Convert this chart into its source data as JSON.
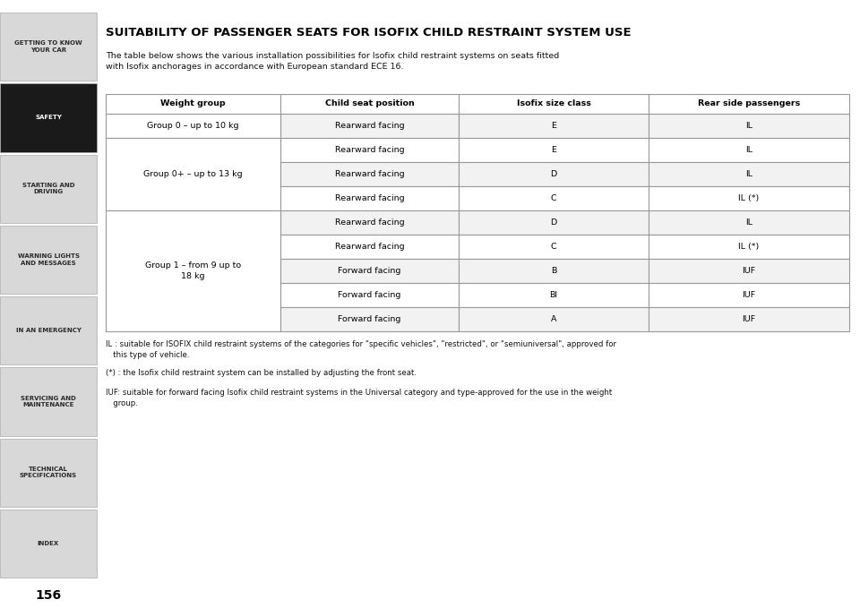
{
  "title": "SUITABILITY OF PASSENGER SEATS FOR ISOFIX CHILD RESTRAINT SYSTEM USE",
  "intro_text": "The table below shows the various installation possibilities for Isofix child restraint systems on seats fitted\nwith Isofix anchorages in accordance with European standard ECE 16.",
  "col_headers": [
    "Weight group",
    "Child seat position",
    "Isofix size class",
    "Rear side passengers"
  ],
  "group_spans": [
    {
      "label": "Group 0 – up to 10 kg",
      "start": 0,
      "end": 0
    },
    {
      "label": "Group 0+ – up to 13 kg",
      "start": 1,
      "end": 3
    },
    {
      "label": "Group 1 – from 9 up to\n18 kg",
      "start": 4,
      "end": 8
    }
  ],
  "rows": [
    [
      "Group 0 – up to 10 kg",
      "Rearward facing",
      "E",
      "IL"
    ],
    [
      "",
      "Rearward facing",
      "E",
      "IL"
    ],
    [
      "Group 0+ – up to 13 kg",
      "Rearward facing",
      "D",
      "IL"
    ],
    [
      "",
      "Rearward facing",
      "C",
      "IL (*)"
    ],
    [
      "",
      "Rearward facing",
      "D",
      "IL"
    ],
    [
      "",
      "Rearward facing",
      "C",
      "IL (*)"
    ],
    [
      "Group 1 – from 9 up to\n18 kg",
      "Forward facing",
      "B",
      "IUF"
    ],
    [
      "",
      "Forward facing",
      "BI",
      "IUF"
    ],
    [
      "",
      "Forward facing",
      "A",
      "IUF"
    ]
  ],
  "footnotes": [
    "IL : suitable for ISOFIX child restraint systems of the categories for \"specific vehicles\", \"restricted\", or \"semiuniversal\", approved for\n   this type of vehicle.",
    "(*) : the Isofix child restraint system can be installed by adjusting the front seat.",
    "IUF: suitable for forward facing Isofix child restraint systems in the Universal category and type-approved for the use in the weight\n   group."
  ],
  "sidebar_items": [
    {
      "label": "GETTING TO KNOW\nYOUR CAR",
      "active": false
    },
    {
      "label": "SAFETY",
      "active": true
    },
    {
      "label": "STARTING AND\nDRIVING",
      "active": false
    },
    {
      "label": "WARNING LIGHTS\nAND MESSAGES",
      "active": false
    },
    {
      "label": "IN AN EMERGENCY",
      "active": false
    },
    {
      "label": "SERVICING AND\nMAINTENANCE",
      "active": false
    },
    {
      "label": "TECHNICAL\nSPECIFICATIONS",
      "active": false
    },
    {
      "label": "INDEX",
      "active": false
    }
  ],
  "page_number": "156",
  "bg_color": "#ffffff",
  "sidebar_bg": "#d8d8d8",
  "sidebar_active_bg": "#1a1a1a",
  "sidebar_text_color": "#2a2a2a",
  "sidebar_active_text": "#ffffff",
  "table_border_color": "#999999",
  "title_color": "#000000"
}
